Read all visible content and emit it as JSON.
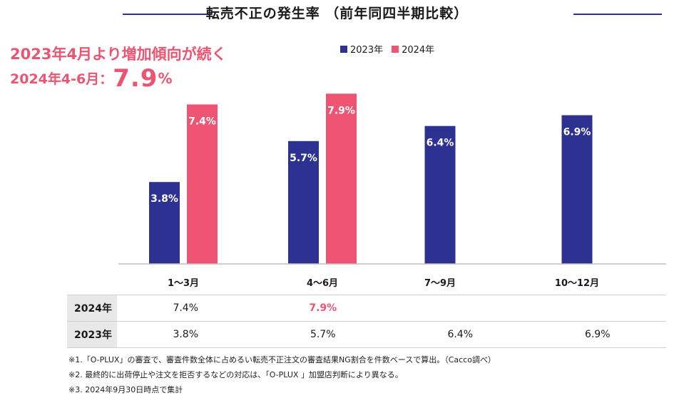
{
  "header": {
    "title": "転売不正の発生率 （前年同四半期比較）"
  },
  "callout": {
    "line1": "2023年4月より増加傾向が続く",
    "line2_prefix": "2024年4-6月：",
    "line2_value": "7.9",
    "line2_unit": "%"
  },
  "colors": {
    "series_2023": "#2d3192",
    "series_2024": "#ef5472",
    "accent": "#ec5571",
    "title_rule": "#2d3192"
  },
  "chart_data": {
    "type": "bar",
    "title": "転売不正の発生率 （前年同四半期比較）",
    "categories": [
      "1〜3月",
      "4〜6月",
      "7〜9月",
      "10〜12月"
    ],
    "series": [
      {
        "name": "2023年",
        "values": [
          3.8,
          5.7,
          6.4,
          6.9
        ],
        "labels": [
          "3.8%",
          "5.7%",
          "6.4%",
          "6.9%"
        ]
      },
      {
        "name": "2024年",
        "values": [
          7.4,
          7.9,
          null,
          null
        ],
        "labels": [
          "7.4%",
          "7.9%",
          "",
          ""
        ]
      }
    ],
    "ylim": [
      0,
      9.4
    ],
    "legend_position": "top-center",
    "grid": false
  },
  "table": {
    "rows": [
      {
        "label": "2024年",
        "cells": [
          "7.4%",
          "7.9%",
          "",
          ""
        ]
      },
      {
        "label": "2023年",
        "cells": [
          "3.8%",
          "5.7%",
          "6.4%",
          "6.9%"
        ]
      }
    ]
  },
  "notes": [
    "※1.「O-PLUX」の審査で、審査件数全体に占めるい転売不正注文の審査結果NG割合を件数ベースで算出。（Cacco調べ）",
    "※2. 最終的に出荷停止や注文を拒否するなどの対応は、「O-PLUX 」加盟店判断により異なる。",
    "※3. 2024年9月30日時点で集計"
  ]
}
